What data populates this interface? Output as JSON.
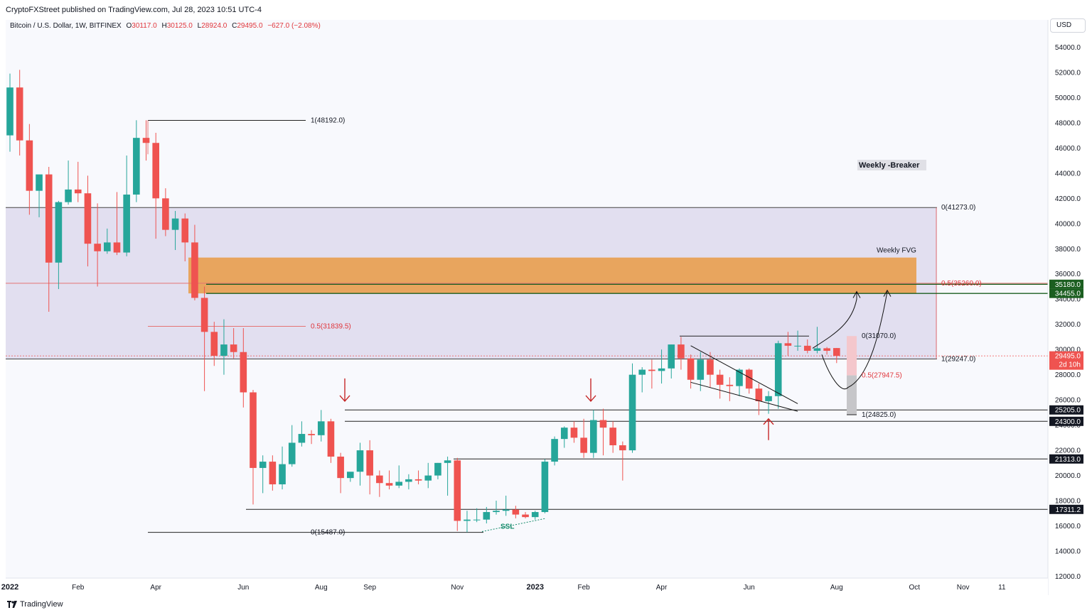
{
  "header": {
    "published": "CryptoFXStreet published on TradingView.com, Jul 28, 2023 10:51 UTC-4"
  },
  "legend": {
    "symbol": "Bitcoin / U.S. Dollar, 1W, BITFINEX",
    "open_label": "O",
    "open": "30117.0",
    "high_label": "H",
    "high": "30125.0",
    "low_label": "L",
    "low": "28924.0",
    "close_label": "C",
    "close": "29495.0",
    "change": "−627.0 (−2.08%)"
  },
  "currency_button": "USD",
  "footer": {
    "brand": "TradingView"
  },
  "colors": {
    "up": "#26a69a",
    "down": "#ef5350",
    "fvg": "#e8a55e",
    "breaker_zone": "#e2dff0",
    "green_level": "#1b5e20",
    "fib_red": "#e0363c",
    "arrow": "#c62828",
    "ssl": "#138a6a"
  },
  "chart_data": {
    "type": "candlestick",
    "symbol": "BTCUSD",
    "timeframe": "1W",
    "ylim": [
      12000,
      55600
    ],
    "y_ticks": [
      12000,
      14000,
      16000,
      18000,
      20000,
      22000,
      24000,
      26000,
      28000,
      30000,
      32000,
      34000,
      36000,
      38000,
      40000,
      42000,
      44000,
      46000,
      48000,
      50000,
      52000,
      54000
    ],
    "x_labels": [
      "2022",
      "Feb",
      "Apr",
      "Jun",
      "Aug",
      "Sep",
      "Nov",
      "2023",
      "Feb",
      "Apr",
      "Jun",
      "Aug",
      "Oct",
      "Nov",
      "11"
    ],
    "x_label_index": [
      0,
      7,
      15,
      24,
      32,
      37,
      46,
      54,
      59,
      67,
      76,
      85,
      93,
      98,
      102
    ],
    "bold_labels": [
      "2022",
      "2023"
    ],
    "candles": [
      [
        47000,
        51900,
        45700,
        50800
      ],
      [
        50800,
        52200,
        45400,
        46600
      ],
      [
        46600,
        47900,
        40700,
        42600
      ],
      [
        42600,
        43500,
        40500,
        43900
      ],
      [
        43900,
        44500,
        33000,
        36900
      ],
      [
        36900,
        41800,
        34800,
        41700
      ],
      [
        41700,
        45000,
        41500,
        42700
      ],
      [
        42700,
        44900,
        41700,
        42400
      ],
      [
        42400,
        43800,
        36600,
        38400
      ],
      [
        38400,
        41600,
        35000,
        37800
      ],
      [
        37800,
        39600,
        37600,
        38500
      ],
      [
        38500,
        42500,
        37500,
        37700
      ],
      [
        37700,
        45400,
        37400,
        42300
      ],
      [
        42300,
        48200,
        41700,
        46800
      ],
      [
        46800,
        48200,
        45000,
        46400
      ],
      [
        46400,
        47200,
        38800,
        42000
      ],
      [
        42000,
        42800,
        39000,
        39500
      ],
      [
        39500,
        41000,
        37900,
        40400
      ],
      [
        40400,
        40800,
        37000,
        38500
      ],
      [
        38500,
        39900,
        33900,
        34100
      ],
      [
        34100,
        35000,
        26700,
        31400
      ],
      [
        31400,
        32200,
        28700,
        29500
      ],
      [
        29500,
        32400,
        28000,
        30400
      ],
      [
        30400,
        31700,
        29300,
        29800
      ],
      [
        29800,
        31700,
        25400,
        26600
      ],
      [
        26600,
        26800,
        17700,
        20600
      ],
      [
        20600,
        21600,
        18600,
        21100
      ],
      [
        21100,
        21600,
        18800,
        19300
      ],
      [
        19300,
        22300,
        18900,
        20900
      ],
      [
        20900,
        24000,
        20700,
        22600
      ],
      [
        22600,
        24300,
        22300,
        23300
      ],
      [
        23300,
        23600,
        22500,
        23200
      ],
      [
        23200,
        25200,
        22700,
        24300
      ],
      [
        24300,
        24500,
        21000,
        21500
      ],
      [
        21500,
        21800,
        18600,
        19800
      ],
      [
        19800,
        20200,
        19500,
        20300
      ],
      [
        20300,
        22600,
        19200,
        22000
      ],
      [
        22000,
        22800,
        18500,
        20000
      ],
      [
        20000,
        20400,
        18300,
        19400
      ],
      [
        19400,
        20400,
        18900,
        19200
      ],
      [
        19200,
        20800,
        19000,
        19500
      ],
      [
        19500,
        20100,
        18900,
        19700
      ],
      [
        19700,
        20400,
        19300,
        19600
      ],
      [
        19600,
        21000,
        19000,
        20000
      ],
      [
        20000,
        21000,
        19700,
        21000
      ],
      [
        21000,
        21500,
        18400,
        21200
      ],
      [
        21200,
        21400,
        15600,
        16400
      ],
      [
        16400,
        17200,
        15500,
        16500
      ],
      [
        16500,
        17400,
        16300,
        16500
      ],
      [
        16500,
        17500,
        16200,
        17100
      ],
      [
        17100,
        18000,
        16900,
        17200
      ],
      [
        17200,
        18400,
        16800,
        17300
      ],
      [
        17300,
        17600,
        16600,
        16900
      ],
      [
        16900,
        17100,
        16600,
        16700
      ],
      [
        16700,
        17200,
        16500,
        17100
      ],
      [
        17100,
        21300,
        17000,
        21100
      ],
      [
        21100,
        23100,
        20800,
        22900
      ],
      [
        22900,
        23900,
        22200,
        23800
      ],
      [
        23800,
        24300,
        22600,
        23000
      ],
      [
        23000,
        24500,
        21400,
        21800
      ],
      [
        21800,
        25200,
        21400,
        24400
      ],
      [
        24400,
        25300,
        21600,
        23800
      ],
      [
        23800,
        24300,
        21800,
        22400
      ],
      [
        22400,
        22700,
        19600,
        22000
      ],
      [
        22000,
        28900,
        21800,
        28000
      ],
      [
        28000,
        28600,
        26600,
        28400
      ],
      [
        28400,
        29200,
        26900,
        28300
      ],
      [
        28300,
        30000,
        27300,
        28500
      ],
      [
        28500,
        30400,
        27700,
        30400
      ],
      [
        30400,
        31000,
        28400,
        29300
      ],
      [
        29300,
        29600,
        26900,
        27600
      ],
      [
        27600,
        29800,
        26700,
        29200
      ],
      [
        29200,
        29800,
        27000,
        28000
      ],
      [
        28000,
        28400,
        26100,
        27200
      ],
      [
        27200,
        27800,
        25900,
        27100
      ],
      [
        27100,
        28500,
        26300,
        28400
      ],
      [
        28400,
        28500,
        26500,
        26900
      ],
      [
        26900,
        27300,
        24800,
        25900
      ],
      [
        25900,
        26700,
        24900,
        26300
      ],
      [
        26300,
        30700,
        25300,
        30500
      ],
      [
        30500,
        31400,
        29500,
        30300
      ],
      [
        30300,
        31500,
        29900,
        30300
      ],
      [
        30300,
        30800,
        29700,
        29900
      ],
      [
        29900,
        31800,
        29700,
        30100
      ],
      [
        30100,
        30200,
        29600,
        29900
      ],
      [
        30117,
        30125,
        28924,
        29495
      ]
    ],
    "zones": [
      {
        "name": "Weekly -Breaker",
        "from": 29247,
        "to": 41273
      },
      {
        "name": "Weekly FVG",
        "from": 34455,
        "to": 37300
      }
    ],
    "price_labels": [
      {
        "value": 35180.0,
        "text": "35180.0"
      },
      {
        "value": 34455.0,
        "text": "34455.0"
      },
      {
        "value": 29495.0,
        "text": "29495.0",
        "sub": "2d 10h"
      },
      {
        "value": 25205.0,
        "text": "25205.0"
      },
      {
        "value": 24300.0,
        "text": "24300.0"
      },
      {
        "value": 21313.0,
        "text": "21313.0"
      },
      {
        "value": 17311.2,
        "text": "17311.2"
      }
    ],
    "fib_labels": [
      {
        "text": "1(48192.0)",
        "value": 48192.0
      },
      {
        "text": "0.5(31839.5)",
        "value": 31839.5
      },
      {
        "text": "0(15487.0)",
        "value": 15487.0
      },
      {
        "text": "0(41273.0)",
        "value": 41273.0
      },
      {
        "text": "0.5(35260.0)",
        "value": 35260.0
      },
      {
        "text": "1(29247.0)",
        "value": 29247.0
      },
      {
        "text": "0(31070.0)",
        "value": 31070.0
      },
      {
        "text": "0.5(27947.5)",
        "value": 27947.5
      },
      {
        "text": "1(24825.0)",
        "value": 24825.0
      }
    ],
    "annotations": [
      "Weekly -Breaker",
      "Weekly FVG",
      "SSL"
    ]
  }
}
